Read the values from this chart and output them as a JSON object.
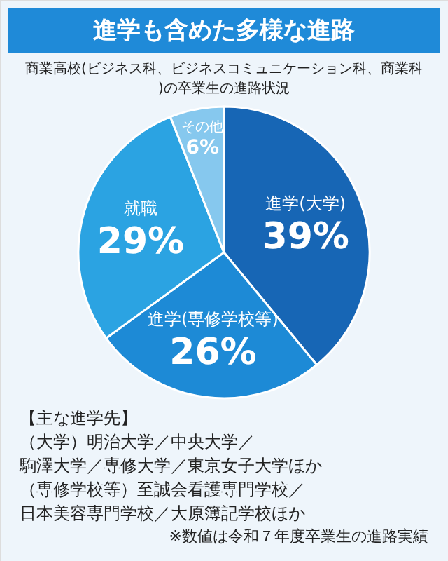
{
  "chart_data": {
    "type": "pie",
    "title": "進学も含めた多様な進路",
    "subtitle": "商業高校(ビジネス科、ビジネスコミュニケーション科、商業科)の卒業生の進路状況",
    "categories": [
      "進学(大学)",
      "進学(専修学校等)",
      "就職",
      "その他"
    ],
    "values": [
      39,
      26,
      29,
      6
    ],
    "colors": [
      "#1766b5",
      "#1d8ad6",
      "#2ba3e2",
      "#86c8ee"
    ],
    "value_labels": [
      "39%",
      "26%",
      "29%",
      "6%"
    ],
    "annotations": [
      "【主な進学先】",
      "（大学）明治大学／中央大学／",
      "駒澤大学／専修大学／東京女子大学ほか",
      "（専修学校等）至誠会看護専門学校／",
      "日本美容専門学校／大原簿記学校ほか",
      "※数値は令和７年度卒業生の進路実績"
    ]
  }
}
